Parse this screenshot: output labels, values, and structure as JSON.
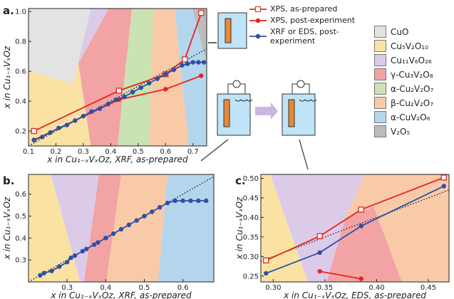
{
  "chart_data": [
    {
      "type": "line",
      "panel_label": "a.",
      "x_label": "x in Cu₁₋ₓVₓOz, XRF, as-prepared",
      "y_label": "x in Cu₁₋ₓVₓOz",
      "xlim": [
        0.1,
        0.75
      ],
      "ylim": [
        0.1,
        1.02
      ],
      "xticks": [
        0.1,
        0.2,
        0.3,
        0.4,
        0.5,
        0.6,
        0.7
      ],
      "yticks": [
        0.2,
        0.4,
        0.6,
        0.8,
        {
          "value": 1.0,
          "label": "1.0"
        }
      ],
      "series": [
        {
          "name": "XPS, as-prepared",
          "color": "#e8231f",
          "marker": "square-open",
          "x": [
            0.12,
            0.43,
            0.6,
            0.67,
            0.73
          ],
          "values": [
            0.2,
            0.47,
            0.58,
            0.68,
            0.99
          ]
        },
        {
          "name": "XPS, post-experiment",
          "color": "#e8231f",
          "marker": "circle",
          "x": [
            0.12,
            0.43,
            0.6,
            0.73
          ],
          "values": [
            0.14,
            0.41,
            0.48,
            0.57
          ]
        },
        {
          "name": "XRF or EDS, post-experiment",
          "color": "#2e4fa8",
          "marker": "circle",
          "x": [
            0.12,
            0.15,
            0.18,
            0.21,
            0.24,
            0.27,
            0.3,
            0.33,
            0.36,
            0.39,
            0.42,
            0.45,
            0.48,
            0.51,
            0.54,
            0.57,
            0.6,
            0.63,
            0.66,
            0.68,
            0.7,
            0.72,
            0.74
          ],
          "values": [
            0.14,
            0.16,
            0.19,
            0.22,
            0.24,
            0.27,
            0.3,
            0.33,
            0.35,
            0.38,
            0.41,
            0.43,
            0.46,
            0.49,
            0.52,
            0.55,
            0.58,
            0.61,
            0.64,
            0.65,
            0.66,
            0.66,
            0.66
          ]
        }
      ]
    },
    {
      "type": "line",
      "panel_label": "b.",
      "x_label": "x in Cu₁₋ₓVₓOz, XRF, as-prepared",
      "y_label": "x in Cu₁₋ₓVₓOz",
      "xlim": [
        0.2,
        0.68
      ],
      "ylim": [
        0.2,
        0.69
      ],
      "xticks": [
        0.3,
        0.4,
        0.5,
        0.6
      ],
      "yticks": [
        0.3,
        0.4,
        0.5,
        0.6
      ],
      "series": [
        {
          "color": "#2e4fa8",
          "marker": "circle",
          "x": [
            0.23,
            0.24,
            0.26,
            0.28,
            0.3,
            0.31,
            0.32,
            0.34,
            0.35,
            0.37,
            0.38,
            0.4,
            0.42,
            0.44,
            0.46,
            0.48,
            0.5,
            0.52,
            0.54,
            0.56,
            0.58,
            0.6,
            0.62,
            0.64,
            0.66
          ],
          "values": [
            0.23,
            0.24,
            0.25,
            0.27,
            0.29,
            0.31,
            0.32,
            0.34,
            0.35,
            0.37,
            0.38,
            0.4,
            0.42,
            0.44,
            0.46,
            0.48,
            0.5,
            0.52,
            0.54,
            0.56,
            0.57,
            0.57,
            0.57,
            0.57,
            0.57
          ]
        }
      ]
    },
    {
      "type": "line",
      "panel_label": "c.",
      "x_label": "x in Cu₁₋ₓVₓOz, EDS, as-prepared",
      "y_label": "x in Cu₁₋ₓVₓOz",
      "xlim": [
        0.288,
        0.47
      ],
      "ylim": [
        0.235,
        0.51
      ],
      "xticks": [
        {
          "value": 0.3,
          "label": "0.30"
        },
        0.35,
        {
          "value": 0.4,
          "label": "0.40"
        },
        0.45
      ],
      "yticks": [
        0.25,
        {
          "value": 0.3,
          "label": "0.30"
        },
        0.35,
        {
          "value": 0.4,
          "label": "0.40"
        },
        0.45,
        {
          "value": 0.5,
          "label": "0.50"
        }
      ],
      "series": [
        {
          "color": "#e8231f",
          "marker": "square-open",
          "x": [
            0.293,
            0.345,
            0.385,
            0.465
          ],
          "values": [
            0.29,
            0.352,
            0.42,
            0.502
          ]
        },
        {
          "color": "#2e4fa8",
          "marker": "circle",
          "x": [
            0.293,
            0.345,
            0.385,
            0.465
          ],
          "values": [
            0.257,
            0.31,
            0.378,
            0.48
          ]
        },
        {
          "color": "#e8231f",
          "marker": "circle",
          "x": [
            0.345,
            0.385
          ],
          "values": [
            0.262,
            0.243
          ]
        }
      ]
    }
  ],
  "phases": [
    {
      "label": "CuO",
      "color": "#e3e3e3"
    },
    {
      "label": "Cu₅V₂O₁₀",
      "color": "#f9e2a2"
    },
    {
      "label": "Cu₁₁V₆O₂₆",
      "color": "#dccbe8"
    },
    {
      "label": "γ-Cu₃V₂O₈",
      "color": "#f2a3a3"
    },
    {
      "label": "α-Cu₂V₂O₇",
      "color": "#cbe2b2"
    },
    {
      "label": "β-Cu₂V₂O₇",
      "color": "#f8caa8"
    },
    {
      "label": "α-CuV₂O₆",
      "color": "#b3d6ec"
    },
    {
      "label": "V₂O₅",
      "color": "#bcbcbc"
    }
  ]
}
